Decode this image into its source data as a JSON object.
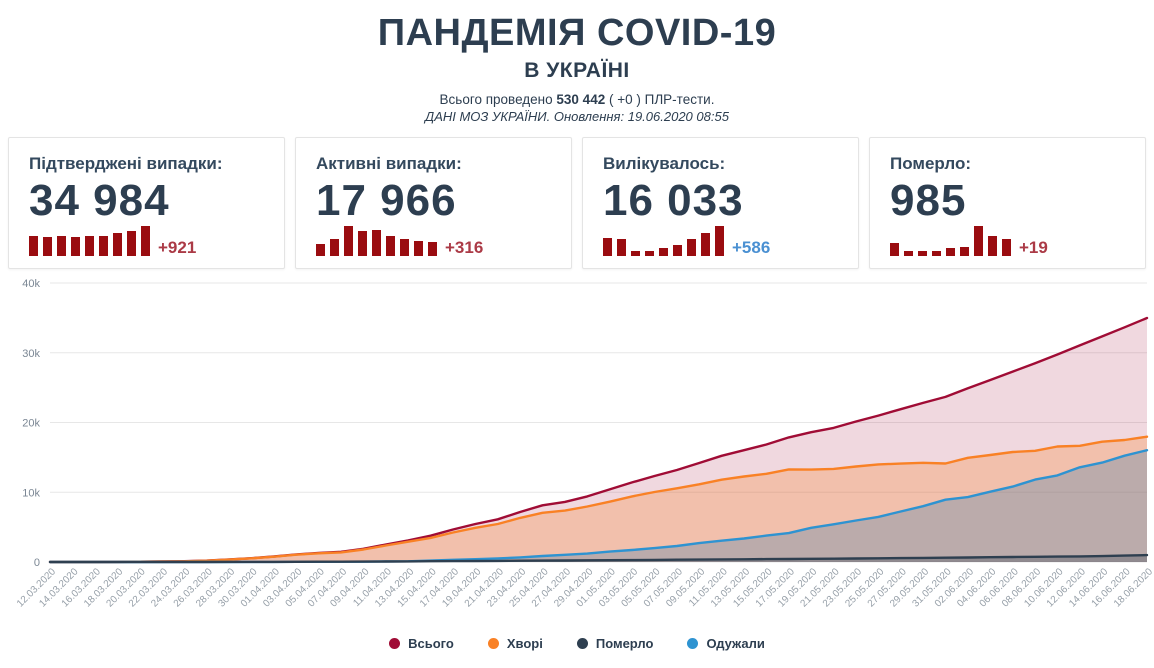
{
  "header": {
    "title": "ПАНДЕМІЯ COVID-19",
    "subtitle": "В УКРАЇНІ",
    "tests_prefix": "Всього проведено",
    "tests_count": "530 442",
    "tests_suffix": "( +0 ) ПЛР-тести.",
    "update_line": "ДАНІ МОЗ УКРАЇНИ. Оновлення: 19.06.2020 08:55"
  },
  "cards": [
    {
      "label": "Підтверджені випадки:",
      "value": "34 984",
      "delta": "+921",
      "delta_color": "#ab3a46",
      "bar_color": "#9a0c10",
      "bars": [
        0.66,
        0.63,
        0.65,
        0.63,
        0.65,
        0.65,
        0.78,
        0.83,
        1.0
      ]
    },
    {
      "label": "Активні випадки:",
      "value": "17 966",
      "delta": "+316",
      "delta_color": "#ab3a46",
      "bar_color": "#9a0c10",
      "bars": [
        0.4,
        0.58,
        1.0,
        0.82,
        0.86,
        0.65,
        0.58,
        0.5,
        0.45
      ]
    },
    {
      "label": "Вилікувалось:",
      "value": "16 033",
      "delta": "+586",
      "delta_color": "#4a90d2",
      "bar_color": "#9a0c10",
      "bars": [
        0.6,
        0.58,
        0.15,
        0.15,
        0.26,
        0.38,
        0.55,
        0.75,
        1.0
      ]
    },
    {
      "label": "Померло:",
      "value": "985",
      "delta": "+19",
      "delta_color": "#ab3a46",
      "bar_color": "#9a0c10",
      "bars": [
        0.42,
        0.17,
        0.17,
        0.17,
        0.28,
        0.31,
        1.0,
        0.67,
        0.56
      ]
    }
  ],
  "chart_data": {
    "type": "area",
    "title": "",
    "xlabel": "",
    "ylabel": "",
    "ylim": [
      0,
      40000
    ],
    "grid": true,
    "legend_position": "bottom",
    "yticks": [
      {
        "v": 0,
        "label": "0"
      },
      {
        "v": 10000,
        "label": "10k"
      },
      {
        "v": 20000,
        "label": "20k"
      },
      {
        "v": 30000,
        "label": "30k"
      },
      {
        "v": 40000,
        "label": "40k"
      }
    ],
    "x": [
      "12.03.2020",
      "14.03.2020",
      "16.03.2020",
      "18.03.2020",
      "20.03.2020",
      "22.03.2020",
      "24.03.2020",
      "26.03.2020",
      "28.03.2020",
      "30.03.2020",
      "01.04.2020",
      "03.04.2020",
      "05.04.2020",
      "07.04.2020",
      "09.04.2020",
      "11.04.2020",
      "13.04.2020",
      "15.04.2020",
      "17.04.2020",
      "19.04.2020",
      "21.04.2020",
      "23.04.2020",
      "25.04.2020",
      "27.04.2020",
      "29.04.2020",
      "01.05.2020",
      "03.05.2020",
      "05.05.2020",
      "07.05.2020",
      "09.05.2020",
      "11.05.2020",
      "13.05.2020",
      "15.05.2020",
      "17.05.2020",
      "19.05.2020",
      "21.05.2020",
      "23.05.2020",
      "25.05.2020",
      "27.05.2020",
      "29.05.2020",
      "31.05.2020",
      "02.06.2020",
      "04.06.2020",
      "06.06.2020",
      "08.06.2020",
      "10.06.2020",
      "12.06.2020",
      "14.06.2020",
      "16.06.2020",
      "18.06.2020"
    ],
    "series": [
      {
        "name": "Всього",
        "color": "#a00c35",
        "fill": "rgba(160,13,54,0.16)",
        "values": [
          3,
          3,
          7,
          14,
          41,
          73,
          113,
          196,
          356,
          548,
          794,
          1096,
          1308,
          1462,
          1892,
          2511,
          3102,
          3764,
          4662,
          5449,
          6125,
          7170,
          8125,
          8617,
          9410,
          10406,
          11411,
          12331,
          13184,
          14195,
          15232,
          16023,
          16847,
          17858,
          18616,
          19230,
          20148,
          20986,
          21905,
          22811,
          23672,
          24900,
          26100,
          27300,
          28500,
          29750,
          31050,
          32350,
          33650,
          34984
        ]
      },
      {
        "name": "Хворі",
        "color": "#f98125",
        "fill": "rgba(249,129,37,0.27)",
        "values": [
          3,
          2,
          6,
          12,
          38,
          69,
          107,
          190,
          342,
          527,
          760,
          1046,
          1244,
          1372,
          1790,
          2359,
          2912,
          3453,
          4227,
          4900,
          5441,
          6319,
          7060,
          7376,
          7964,
          8647,
          9409,
          10040,
          10567,
          11141,
          11800,
          12259,
          12647,
          13280,
          13254,
          13349,
          13694,
          13990,
          14107,
          14228,
          14127,
          14945,
          15339,
          15777,
          15942,
          16559,
          16665,
          17254,
          17492,
          17966
        ]
      },
      {
        "name": "Одужали",
        "color": "#2e93d1",
        "fill": "rgba(46,120,170,0.28)",
        "values": [
          0,
          0,
          0,
          0,
          0,
          1,
          1,
          1,
          5,
          8,
          14,
          22,
          28,
          45,
          45,
          79,
          97,
          203,
          310,
          408,
          523,
          664,
          864,
          1032,
          1207,
          1498,
          1723,
          1988,
          2290,
          2706,
          3060,
          3373,
          3790,
          4143,
          4906,
          5405,
          5955,
          6461,
          7234,
          7995,
          8934,
          9311,
          10078,
          10809,
          11812,
          12412,
          13575,
          14253,
          15247,
          16033
        ]
      },
      {
        "name": "Померло",
        "color": "#2e3f50",
        "fill": "rgba(46,63,80,0.30)",
        "values": [
          0,
          1,
          1,
          2,
          3,
          3,
          5,
          5,
          9,
          13,
          20,
          28,
          36,
          45,
          57,
          73,
          93,
          108,
          125,
          141,
          161,
          187,
          201,
          209,
          239,
          261,
          279,
          303,
          327,
          348,
          372,
          391,
          410,
          435,
          456,
          476,
          499,
          535,
          564,
          588,
          611,
          644,
          683,
          714,
          746,
          779,
          810,
          843,
          911,
          985
        ]
      }
    ],
    "legend": [
      {
        "label": "Всього",
        "color": "#a00c35"
      },
      {
        "label": "Хворі",
        "color": "#f98125"
      },
      {
        "label": "Померло",
        "color": "#2e3f50"
      },
      {
        "label": "Одужали",
        "color": "#2e93d1"
      }
    ]
  }
}
